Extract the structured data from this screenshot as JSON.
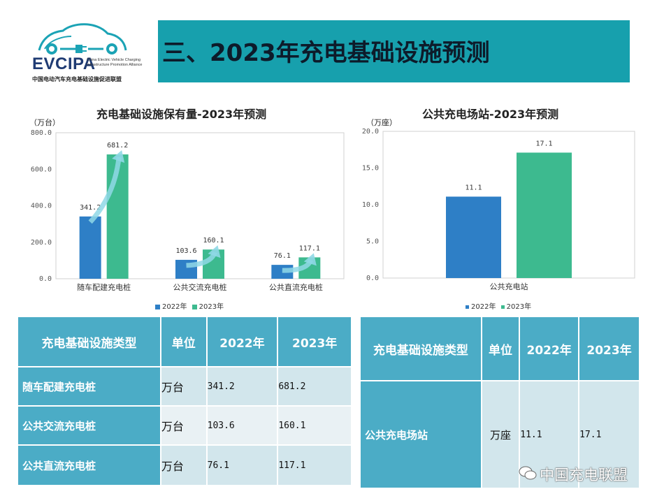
{
  "header": {
    "logo_text": "EVCIPA",
    "logo_subtitle": "China Electric Vehicle Charging Infrastructure Promotion Alliance",
    "logo_cn": "中国电动汽车充电基础设施促进联盟",
    "title": "三、2023年充电基础设施预测",
    "accent_color": "#17a0ad"
  },
  "chart_data": [
    {
      "type": "bar",
      "title": "充电基础设施保有量-2023年预测",
      "unit": "（万台）",
      "categories": [
        "随车配建充电桩",
        "公共交流充电桩",
        "公共直流充电桩"
      ],
      "series": [
        {
          "name": "2022年",
          "values": [
            341.2,
            103.6,
            76.1
          ],
          "labels": [
            "341.2",
            "103.6",
            "76.1"
          ],
          "color": "#2e7fc6"
        },
        {
          "name": "2023年",
          "values": [
            681.2,
            160.1,
            117.1
          ],
          "labels": [
            "681.2",
            "160.1",
            "117.1"
          ],
          "color": "#3dba8f"
        }
      ],
      "yticks": [
        "0.0",
        "200.0",
        "400.0",
        "600.0",
        "800.0"
      ],
      "ylim": [
        0,
        800
      ],
      "legend": "bottom",
      "grid": false
    },
    {
      "type": "bar",
      "title": "公共充电场站-2023年预测",
      "unit": "（万座）",
      "categories": [
        "公共充电站"
      ],
      "series": [
        {
          "name": "2022年",
          "values": [
            11.1
          ],
          "labels": [
            "11.1"
          ],
          "color": "#2e7fc6"
        },
        {
          "name": "2023年",
          "values": [
            17.1
          ],
          "labels": [
            "17.1"
          ],
          "color": "#3dba8f"
        }
      ],
      "yticks": [
        "0.0",
        "5.0",
        "10.0",
        "15.0",
        "20.0"
      ],
      "ylim": [
        0,
        20
      ],
      "legend": "bottom",
      "grid": false
    }
  ],
  "table1": {
    "headers": [
      "充电基础设施类型",
      "单位",
      "2022年",
      "2023年"
    ],
    "rows": [
      {
        "type": "随车配建充电桩",
        "unit": "万台",
        "y2022": "341.2",
        "y2023": "681.2"
      },
      {
        "type": "公共交流充电桩",
        "unit": "万台",
        "y2022": "103.6",
        "y2023": "160.1"
      },
      {
        "type": "公共直流充电桩",
        "unit": "万台",
        "y2022": "76.1",
        "y2023": "117.1"
      }
    ]
  },
  "table2": {
    "headers": [
      "充电基础设施类型",
      "单位",
      "2022年",
      "2023年"
    ],
    "rows": [
      {
        "type": "公共充电场站",
        "unit": "万座",
        "y2022": "11.1",
        "y2023": "17.1"
      }
    ]
  },
  "watermark": "中国充电联盟"
}
